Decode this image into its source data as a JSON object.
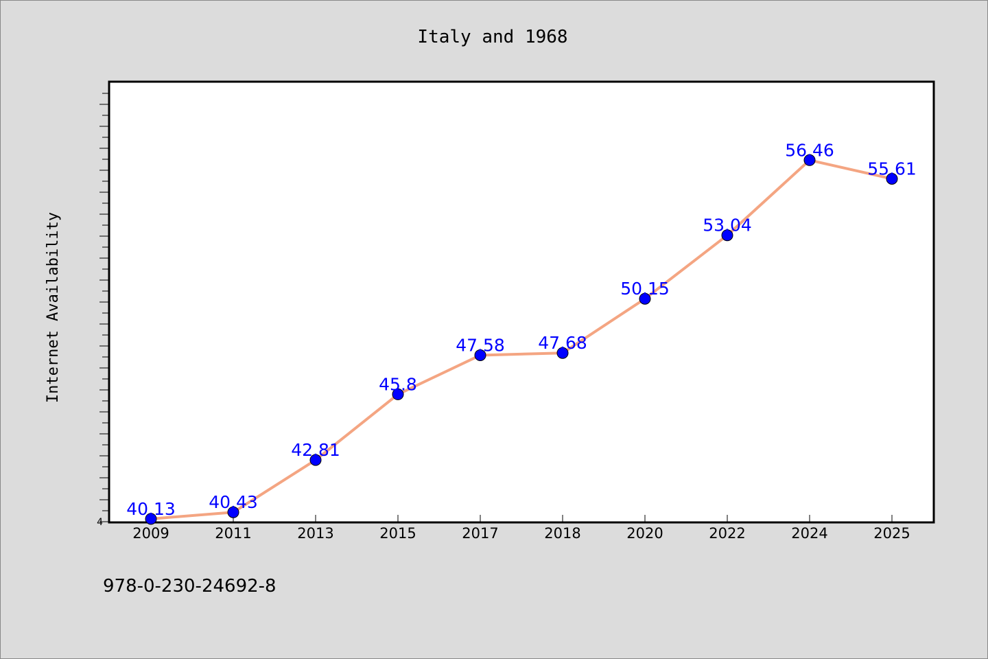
{
  "chart_data": {
    "type": "line",
    "title": "Italy and 1968",
    "xlabel": "",
    "ylabel": "Internet Availability",
    "categories": [
      "2009",
      "2011",
      "2013",
      "2015",
      "2017",
      "2018",
      "2020",
      "2022",
      "2024",
      "2025"
    ],
    "series": [
      {
        "values": [
          40.13,
          40.43,
          42.81,
          45.8,
          47.58,
          47.68,
          50.15,
          53.04,
          56.46,
          55.61
        ],
        "labels": [
          "40.13",
          "40.43",
          "42.81",
          "45.8",
          "47.58",
          "47.68",
          "50.15",
          "53.04",
          "56.46",
          "55.61"
        ]
      }
    ],
    "ylim": [
      40,
      60
    ],
    "y_tick_label": "4",
    "grid": false,
    "line_color": "#f4a582",
    "marker_color": "#0000ff",
    "label_color": "#0000ff"
  },
  "footer": {
    "text": "978-0-230-24692-8"
  }
}
